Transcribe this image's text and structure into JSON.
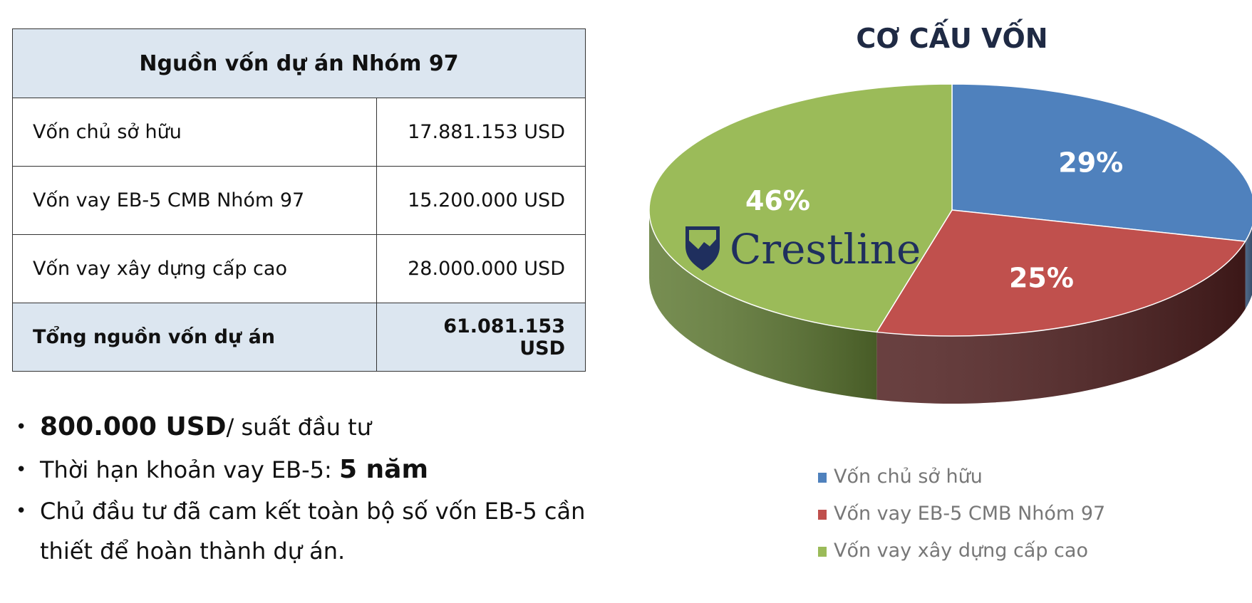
{
  "table": {
    "title": "Nguồn vốn dự án Nhóm 97",
    "rows": [
      {
        "label": "Vốn chủ sở hữu",
        "value": "17.881.153 USD"
      },
      {
        "label": "Vốn vay EB-5 CMB Nhóm 97",
        "value": "15.200.000 USD"
      },
      {
        "label": "Vốn vay xây dựng cấp cao",
        "value": "28.000.000 USD"
      }
    ],
    "total": {
      "label": "Tổng nguồn vốn dự án",
      "value": "61.081.153 USD"
    }
  },
  "bullets": [
    {
      "bold": "800.000 USD",
      "text": "/ suất đầu tư"
    },
    {
      "text": "Thời hạn khoản vay EB-5: ",
      "bold": "5 năm"
    },
    {
      "text": "Chủ đầu tư đã cam kết toàn bộ số vốn EB-5 cần thiết để hoàn thành dự án."
    }
  ],
  "logo": "Crestline",
  "chart_data": {
    "type": "pie",
    "title": "CƠ CẤU VỐN",
    "categories": [
      "Vốn chủ sở hữu",
      "Vốn vay EB-5 CMB Nhóm 97",
      "Vốn vay xây dựng cấp cao"
    ],
    "values": [
      29,
      25,
      46
    ],
    "labels": [
      "29%",
      "25%",
      "46%"
    ],
    "colors": [
      "#4f81bd",
      "#c0504d",
      "#9bbb59"
    ],
    "side_colors": [
      "#2f4d72",
      "#4f1f1f",
      "#5f7a33"
    ],
    "legend": "bottom-right"
  }
}
